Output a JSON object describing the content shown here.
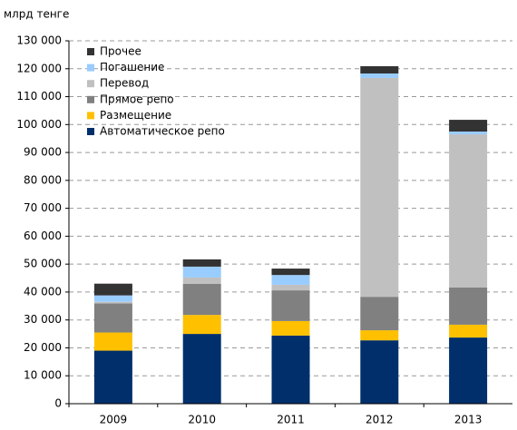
{
  "chart_data": {
    "type": "stacked_bar",
    "y_label": "млрд тенге",
    "categories": [
      "2009",
      "2010",
      "2011",
      "2012",
      "2013"
    ],
    "series": [
      {
        "name": "Автоматическое репо",
        "color": "#002f6c",
        "values": [
          19000,
          25000,
          24400,
          22700,
          23700
        ]
      },
      {
        "name": "Размещение",
        "color": "#ffc000",
        "values": [
          6500,
          6800,
          5200,
          3600,
          4600
        ]
      },
      {
        "name": "Прямое репо",
        "color": "#808080",
        "values": [
          10400,
          11100,
          11000,
          12000,
          13300
        ]
      },
      {
        "name": "Перевод",
        "color": "#c0c0c0",
        "values": [
          600,
          2300,
          2000,
          78400,
          54900
        ]
      },
      {
        "name": "Погашение",
        "color": "#99ccff",
        "values": [
          2300,
          3900,
          3500,
          1600,
          1000
        ]
      },
      {
        "name": "Прочее",
        "color": "#333333",
        "values": [
          4200,
          2600,
          2300,
          2600,
          4200
        ]
      }
    ],
    "ylim": [
      0,
      130000
    ],
    "yticks": [
      0,
      {
        "value": 10000,
        "label": "10 000"
      },
      {
        "value": 20000,
        "label": "20 000"
      },
      {
        "value": 30000,
        "label": "30 000"
      },
      {
        "value": 40000,
        "label": "40 000"
      },
      {
        "value": 50000,
        "label": "50 000"
      },
      {
        "value": 60000,
        "label": "60 000"
      },
      {
        "value": 70000,
        "label": "70 000"
      },
      {
        "value": 80000,
        "label": "80 000"
      },
      {
        "value": 90000,
        "label": "90 000"
      },
      {
        "value": 100000,
        "label": "100 000"
      },
      {
        "value": 110000,
        "label": "110 000"
      },
      {
        "value": 120000,
        "label": "120 000"
      },
      {
        "value": 130000,
        "label": "130 000"
      }
    ],
    "grid": true,
    "legend": "upper-left"
  }
}
